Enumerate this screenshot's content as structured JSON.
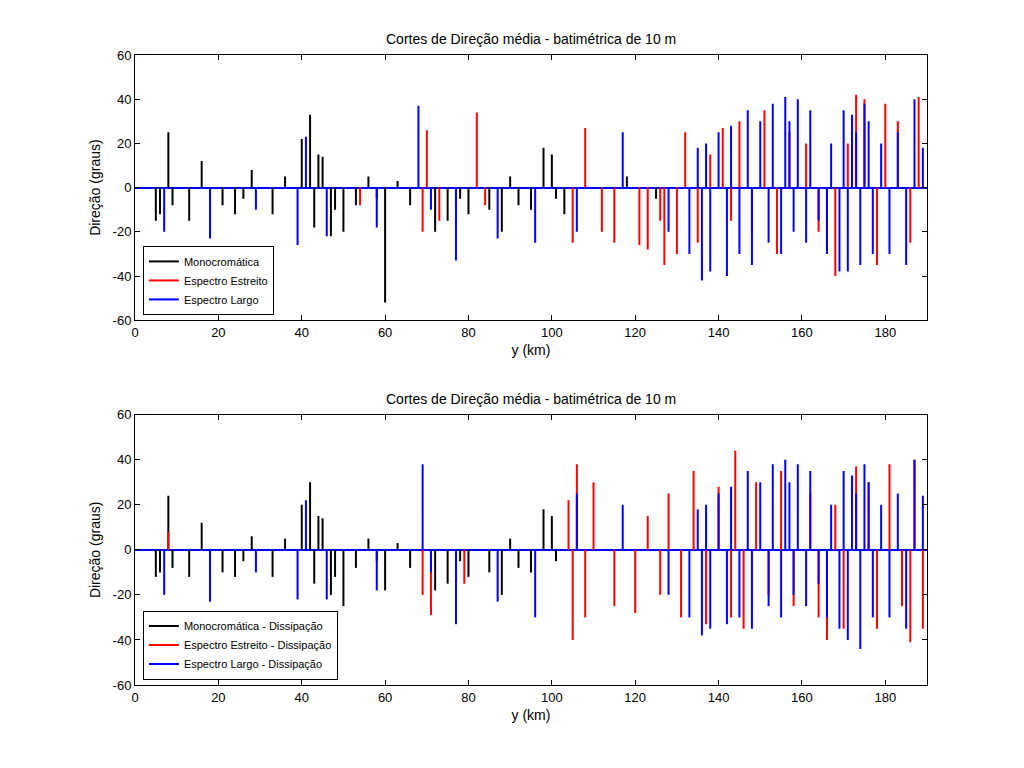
{
  "chart_data": [
    {
      "type": "stem",
      "title": "Cortes de Direção média - batimétrica de 10 m",
      "x_label": "y (km)",
      "y_label": "Direção (graus)",
      "xlim": [
        0,
        190
      ],
      "xticks": [
        0,
        20,
        40,
        60,
        80,
        100,
        120,
        140,
        160,
        180
      ],
      "ylim": [
        -60,
        60
      ],
      "yticks": [
        -60,
        -40,
        -20,
        0,
        20,
        40,
        60
      ],
      "grid": false,
      "legend": "lower left",
      "series": [
        {
          "name": "Monocromática",
          "color": "#000000",
          "x": [
            5,
            6,
            8,
            9,
            13,
            16,
            18,
            21,
            24,
            26,
            28,
            33,
            36,
            40,
            42,
            43,
            44,
            45,
            47,
            48,
            50,
            53,
            56,
            58,
            60,
            63,
            66,
            72,
            75,
            78,
            80,
            85,
            88,
            90,
            92,
            95,
            98,
            100,
            101,
            103,
            118,
            125
          ],
          "values": [
            -15,
            -12,
            25,
            -8,
            -15,
            12,
            -5,
            -8,
            -12,
            -5,
            8,
            -12,
            5,
            22,
            33,
            -18,
            15,
            14,
            -22,
            -10,
            -20,
            -8,
            5,
            -5,
            -52,
            3,
            -8,
            -20,
            -15,
            -5,
            -12,
            -10,
            -20,
            5,
            -8,
            -10,
            18,
            15,
            -5,
            -12,
            5,
            -5
          ]
        },
        {
          "name": "Espectro Estreito",
          "color": "#ff0000",
          "x": [
            54,
            69,
            70,
            73,
            77,
            82,
            84,
            105,
            108,
            112,
            115,
            121,
            123,
            126,
            127,
            130,
            132,
            135,
            138,
            141,
            143,
            145,
            148,
            151,
            154,
            157,
            161,
            164,
            166,
            168,
            171,
            173,
            175,
            178,
            180,
            183,
            186,
            188
          ],
          "values": [
            -8,
            -20,
            26,
            -15,
            -10,
            34,
            -8,
            -25,
            27,
            -20,
            -25,
            -26,
            -28,
            -15,
            -35,
            -30,
            25,
            -25,
            15,
            27,
            -15,
            30,
            -20,
            35,
            -30,
            25,
            20,
            -20,
            -30,
            -40,
            20,
            42,
            40,
            -35,
            38,
            30,
            -25,
            41
          ]
        },
        {
          "name": "Espectro Largo",
          "color": "#0000ff",
          "x": [
            7,
            18,
            29,
            39,
            41,
            46,
            58,
            68,
            71,
            77,
            87,
            96,
            106,
            117,
            128,
            133,
            135,
            136,
            137,
            138,
            140,
            142,
            143,
            145,
            147,
            148,
            150,
            152,
            153,
            155,
            156,
            157,
            158,
            159,
            161,
            162,
            164,
            166,
            167,
            169,
            170,
            171,
            172,
            173,
            174,
            175,
            176,
            177,
            179,
            181,
            183,
            185,
            187,
            189
          ],
          "values": [
            -20,
            -23,
            -10,
            -26,
            23,
            -22,
            -18,
            37,
            -10,
            -33,
            -23,
            -25,
            -20,
            25,
            -20,
            -30,
            18,
            -42,
            20,
            -38,
            25,
            -40,
            28,
            -30,
            35,
            -35,
            30,
            -25,
            38,
            -30,
            41,
            30,
            -20,
            40,
            -25,
            35,
            -15,
            -30,
            20,
            -38,
            35,
            -38,
            33,
            25,
            -35,
            38,
            30,
            -30,
            20,
            -30,
            25,
            -35,
            40,
            18
          ]
        }
      ]
    },
    {
      "type": "stem",
      "title": "Cortes de Direção média - batimétrica de 10 m",
      "x_label": "y (km)",
      "y_label": "Direção (graus)",
      "xlim": [
        0,
        190
      ],
      "xticks": [
        0,
        20,
        40,
        60,
        80,
        100,
        120,
        140,
        160,
        180
      ],
      "ylim": [
        -60,
        60
      ],
      "yticks": [
        -60,
        -40,
        -20,
        0,
        20,
        40,
        60
      ],
      "grid": false,
      "legend": "lower left",
      "series": [
        {
          "name": "Monocromática - Dissipação",
          "color": "#000000",
          "x": [
            5,
            6,
            8,
            9,
            13,
            16,
            18,
            21,
            24,
            26,
            28,
            33,
            36,
            40,
            42,
            43,
            44,
            45,
            47,
            48,
            50,
            53,
            56,
            58,
            60,
            63,
            66,
            72,
            75,
            78,
            80,
            85,
            88,
            90,
            92,
            95,
            98,
            100,
            101
          ],
          "values": [
            -12,
            -10,
            24,
            -8,
            -12,
            12,
            -5,
            -10,
            -12,
            -5,
            6,
            -12,
            5,
            20,
            30,
            -15,
            15,
            14,
            -20,
            -12,
            -25,
            -8,
            5,
            -5,
            -18,
            3,
            -8,
            -18,
            -15,
            -5,
            -12,
            -10,
            -20,
            5,
            -8,
            -10,
            18,
            15,
            -5
          ]
        },
        {
          "name": "Espectro Estreito - Dissipação",
          "color": "#ff0000",
          "x": [
            8,
            69,
            71,
            79,
            104,
            105,
            106,
            108,
            110,
            115,
            120,
            123,
            126,
            128,
            131,
            134,
            137,
            140,
            143,
            144,
            146,
            149,
            152,
            155,
            158,
            162,
            164,
            166,
            168,
            170,
            173,
            176,
            178,
            181,
            184,
            186,
            187,
            189
          ],
          "values": [
            8,
            -20,
            -29,
            -15,
            22,
            -40,
            38,
            -30,
            30,
            -25,
            -28,
            15,
            -20,
            25,
            -30,
            35,
            -33,
            28,
            -30,
            44,
            -35,
            30,
            -20,
            35,
            -25,
            25,
            -30,
            -40,
            20,
            -35,
            37,
            30,
            -35,
            38,
            -25,
            -41,
            40,
            -35
          ]
        },
        {
          "name": "Espectro Largo - Dissipação",
          "color": "#0000ff",
          "x": [
            7,
            18,
            29,
            39,
            41,
            46,
            58,
            69,
            71,
            77,
            87,
            96,
            106,
            117,
            128,
            133,
            135,
            136,
            137,
            138,
            140,
            142,
            143,
            145,
            147,
            148,
            150,
            152,
            153,
            155,
            156,
            157,
            158,
            159,
            161,
            162,
            164,
            166,
            167,
            169,
            170,
            171,
            172,
            173,
            174,
            175,
            176,
            177,
            179,
            181,
            183,
            185,
            187,
            189
          ],
          "values": [
            -20,
            -23,
            -10,
            -22,
            22,
            -22,
            -18,
            38,
            -10,
            -33,
            -23,
            -30,
            25,
            20,
            -20,
            -30,
            18,
            -38,
            20,
            -35,
            25,
            -33,
            28,
            -30,
            35,
            -35,
            30,
            -25,
            38,
            -30,
            40,
            30,
            -20,
            38,
            -25,
            35,
            -15,
            -30,
            20,
            -35,
            35,
            -40,
            33,
            25,
            -44,
            38,
            30,
            -30,
            20,
            -30,
            25,
            -35,
            40,
            24
          ]
        }
      ]
    }
  ]
}
